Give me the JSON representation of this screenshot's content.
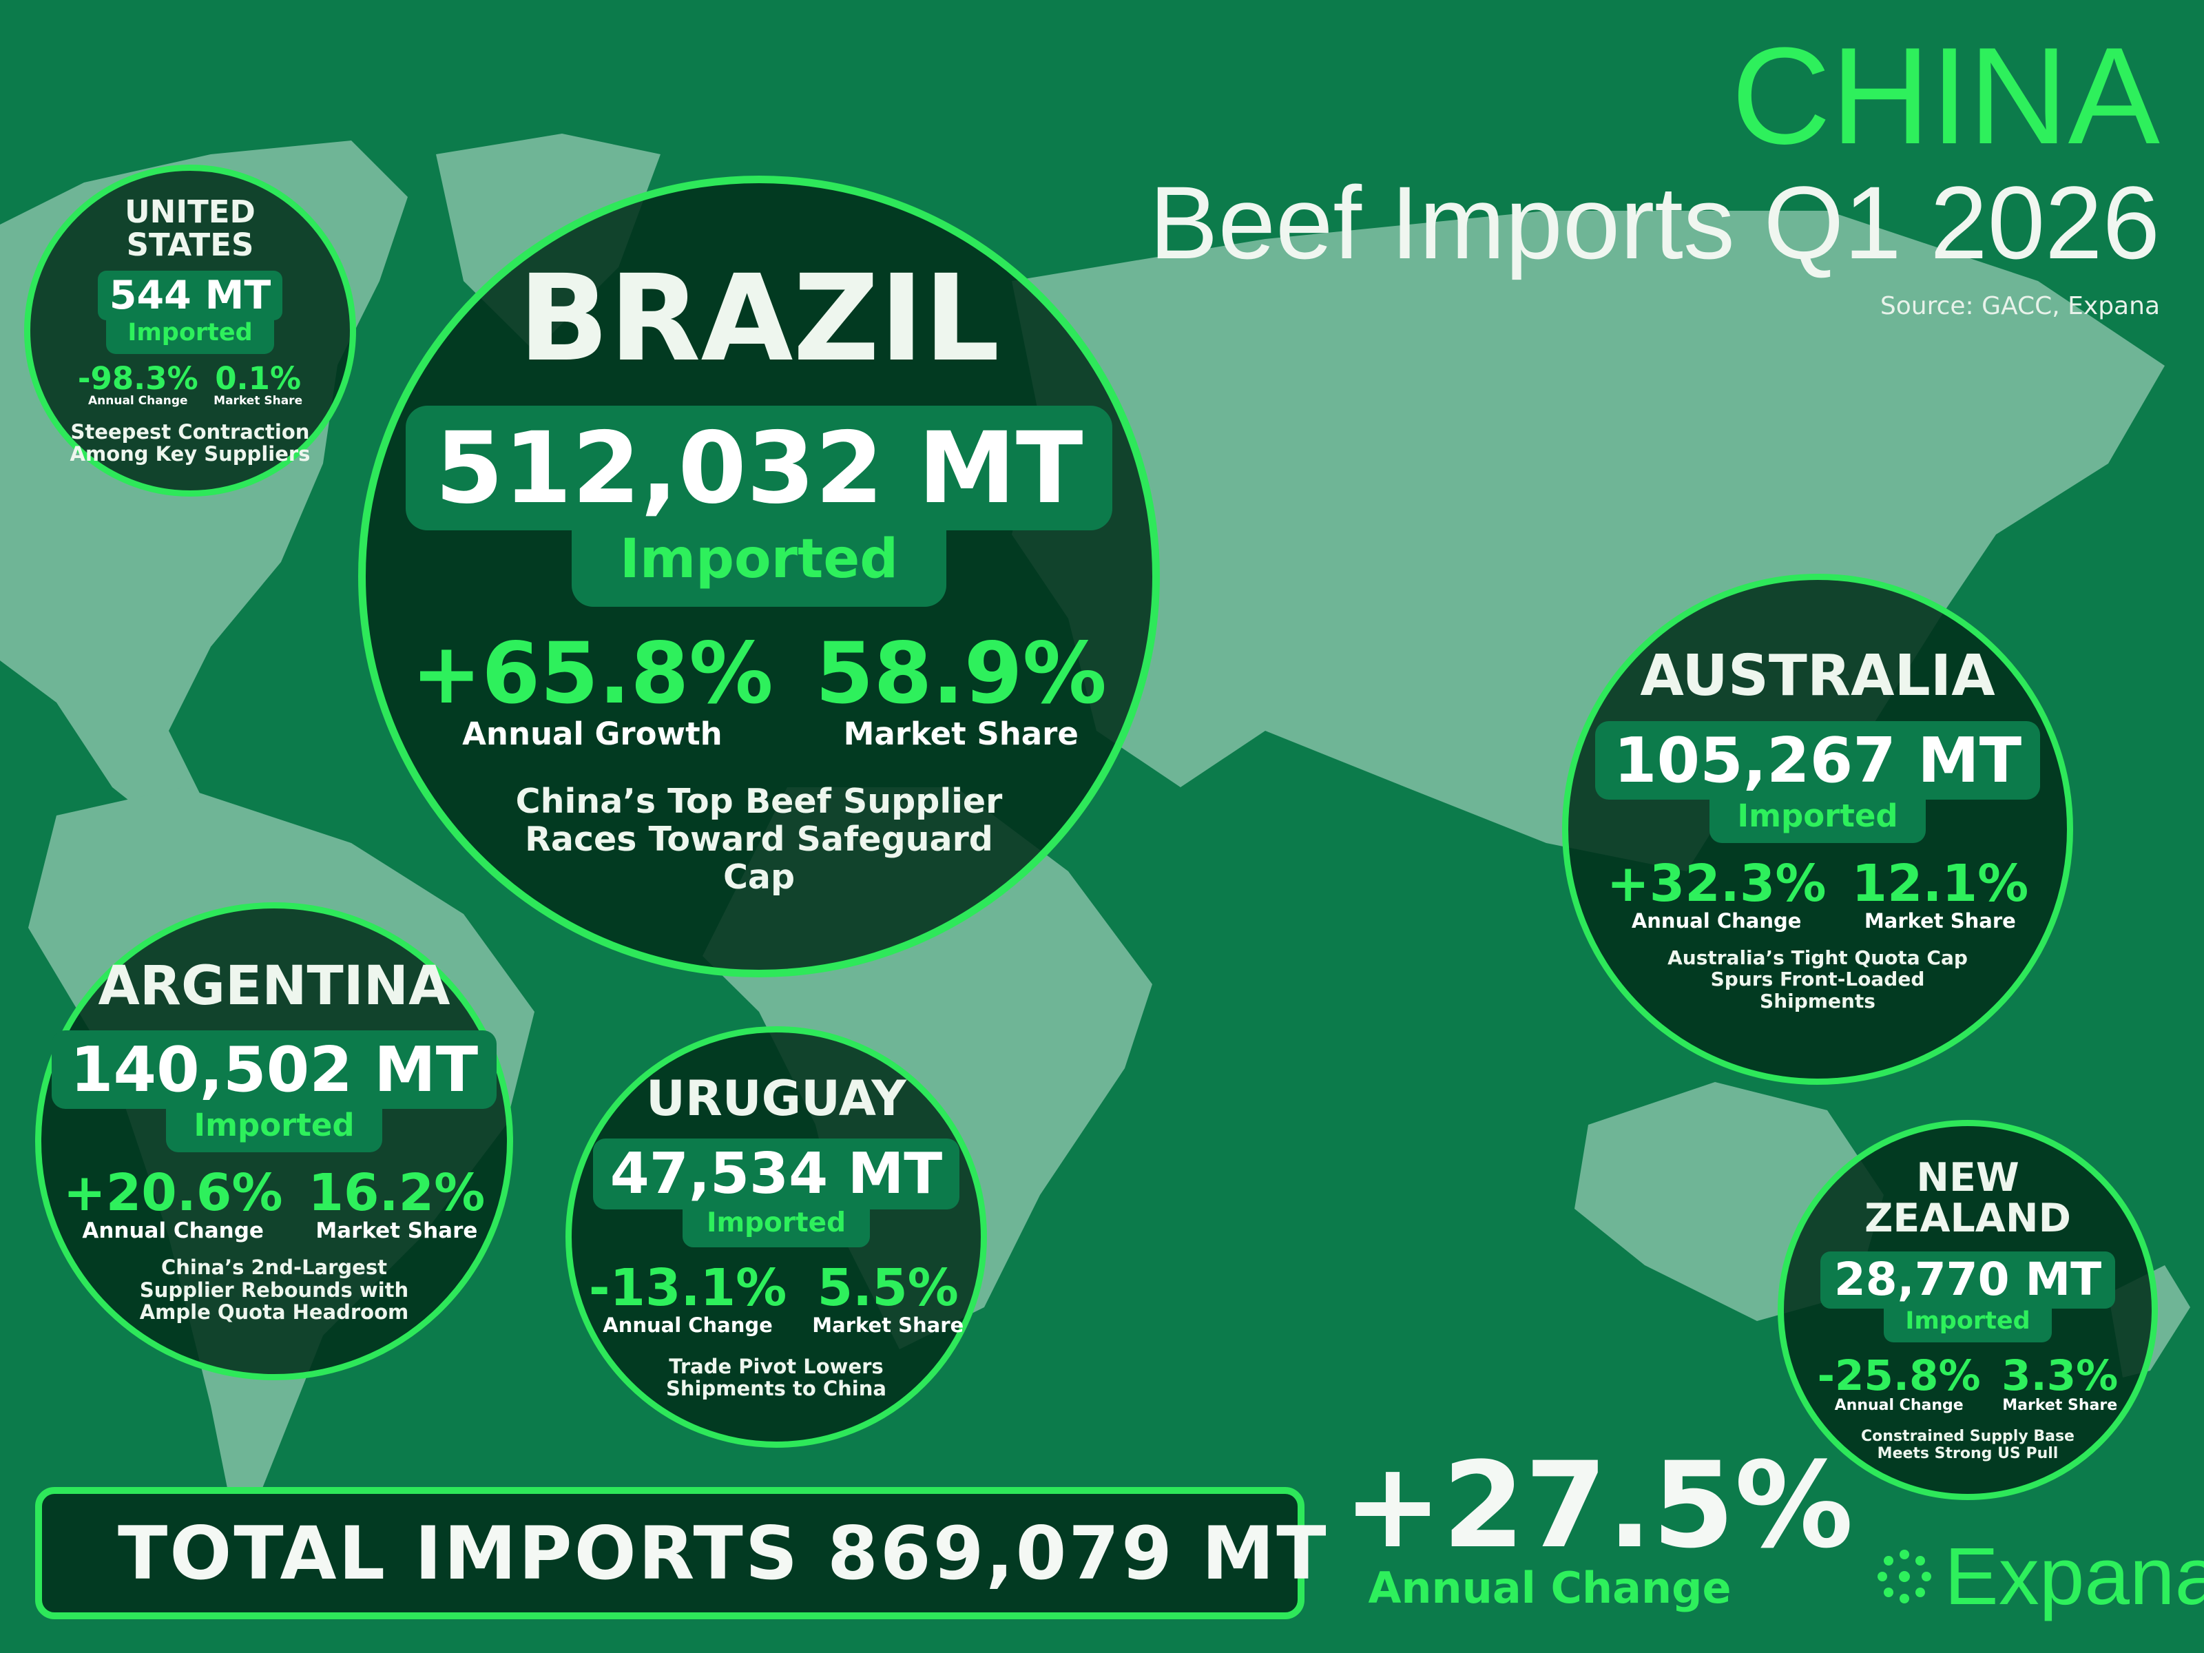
{
  "header": {
    "title": "CHINA",
    "subtitle": "Beef Imports Q1 2026",
    "source": "Source: GACC, Expana"
  },
  "colors": {
    "background": "#0c7b4b",
    "accent": "#2ef05c",
    "circle": "#01301b",
    "land": "#6fb596"
  },
  "suppliers": [
    {
      "name": "UNITED\nSTATES",
      "volume": "544 MT",
      "imported_label": "Imported",
      "change": "-98.3%",
      "change_label": "Annual Change",
      "share": "0.1%",
      "share_label": "Market Share",
      "caption": "Steepest Contraction\nAmong Key Suppliers"
    },
    {
      "name": "BRAZIL",
      "volume": "512,032 MT",
      "imported_label": "Imported",
      "change": "+65.8%",
      "change_label": "Annual Growth",
      "share": "58.9%",
      "share_label": "Market Share",
      "caption": "China’s Top Beef Supplier\nRaces Toward Safeguard\nCap"
    },
    {
      "name": "ARGENTINA",
      "volume": "140,502 MT",
      "imported_label": "Imported",
      "change": "+20.6%",
      "change_label": "Annual Change",
      "share": "16.2%",
      "share_label": "Market Share",
      "caption": "China’s 2nd-Largest\nSupplier Rebounds with\nAmple Quota Headroom"
    },
    {
      "name": "URUGUAY",
      "volume": "47,534 MT",
      "imported_label": "Imported",
      "change": "-13.1%",
      "change_label": "Annual Change",
      "share": "5.5%",
      "share_label": "Market Share",
      "caption": "Trade Pivot Lowers\nShipments to China"
    },
    {
      "name": "AUSTRALIA",
      "volume": "105,267 MT",
      "imported_label": "Imported",
      "change": "+32.3%",
      "change_label": "Annual Change",
      "share": "12.1%",
      "share_label": "Market Share",
      "caption": "Australia’s Tight Quota Cap\nSpurs Front-Loaded\nShipments"
    },
    {
      "name": "NEW\nZEALAND",
      "volume": "28,770 MT",
      "imported_label": "Imported",
      "change": "-25.8%",
      "change_label": "Annual Change",
      "share": "3.3%",
      "share_label": "Market Share",
      "caption": "Constrained Supply Base\nMeets Strong US Pull"
    }
  ],
  "total": {
    "label": "TOTAL IMPORTS 869,079 MT",
    "change": "+27.5%",
    "change_label": "Annual Change"
  },
  "logo": {
    "text": "Expana",
    "icon": "starburst-dots-icon"
  }
}
